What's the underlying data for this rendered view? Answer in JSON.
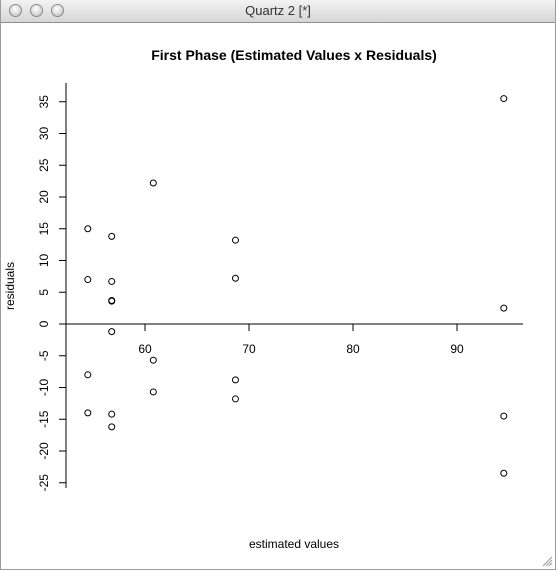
{
  "window": {
    "title": "Quartz 2 [*]"
  },
  "chart_data": {
    "type": "scatter",
    "title": "First Phase (Estimated Values x Residuals)",
    "xlabel": "estimated values",
    "ylabel": "residuals",
    "x_ticks": [
      60,
      70,
      80,
      90
    ],
    "y_ticks": [
      -25,
      -20,
      -15,
      -10,
      -5,
      0,
      5,
      10,
      15,
      20,
      25,
      30,
      35
    ],
    "xlim": [
      52,
      100
    ],
    "ylim": [
      -27,
      37
    ],
    "zero_line": true,
    "x": [
      54.5,
      54.5,
      54.5,
      54.5,
      56.8,
      56.8,
      56.8,
      56.8,
      56.8,
      56.8,
      56.8,
      60.8,
      60.8,
      60.8,
      68.7,
      68.7,
      68.7,
      68.7,
      94.5,
      94.5,
      94.5,
      94.5
    ],
    "y": [
      15.0,
      7.0,
      -8.0,
      -14.0,
      13.8,
      6.7,
      3.7,
      -1.2,
      -14.2,
      -16.2,
      3.6,
      22.2,
      -5.7,
      -10.7,
      13.2,
      7.2,
      -8.8,
      -11.8,
      35.5,
      2.5,
      -14.5,
      -23.5
    ]
  }
}
